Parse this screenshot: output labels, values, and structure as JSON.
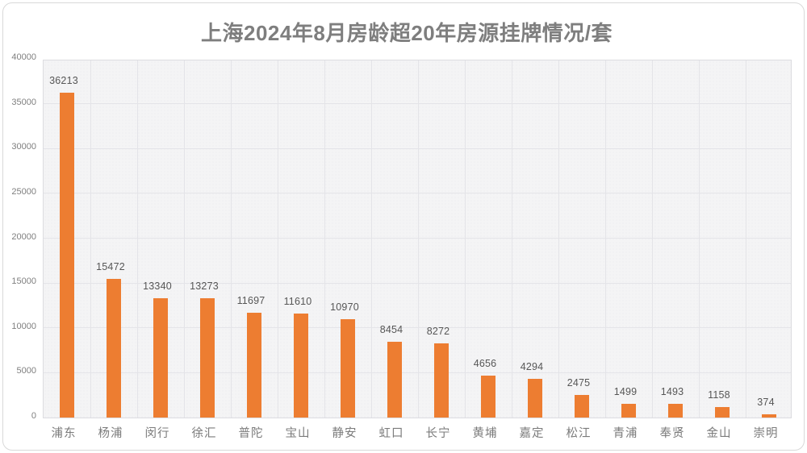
{
  "page": {
    "background_color": "#ffffff",
    "card_border_color": "#d9d9d9"
  },
  "chart_data": {
    "type": "bar",
    "title": "上海2024年8月房龄超20年房源挂牌情况/套",
    "categories": [
      "浦东",
      "杨浦",
      "闵行",
      "徐汇",
      "普陀",
      "宝山",
      "静安",
      "虹口",
      "长宁",
      "黄埔",
      "嘉定",
      "松江",
      "青浦",
      "奉贤",
      "金山",
      "崇明"
    ],
    "values": [
      36213,
      15472,
      13340,
      13273,
      11697,
      11610,
      10970,
      8454,
      8272,
      4656,
      4294,
      2475,
      1499,
      1493,
      1158,
      374
    ],
    "value_labels_shown": true,
    "xlabel": "",
    "ylabel": "",
    "ylim": [
      0,
      40000
    ],
    "yticks": [
      0,
      5000,
      10000,
      15000,
      20000,
      25000,
      30000,
      35000,
      40000
    ],
    "grid": true,
    "legend_position": "none",
    "colors": {
      "bar": "#ED7D31",
      "title_text": "#7e7e7e",
      "value_label_text": "#565656",
      "axis_label_text": "#7f7f7f",
      "plot_background": "#f4f4f5",
      "gridline": "#e4e4e8"
    }
  }
}
